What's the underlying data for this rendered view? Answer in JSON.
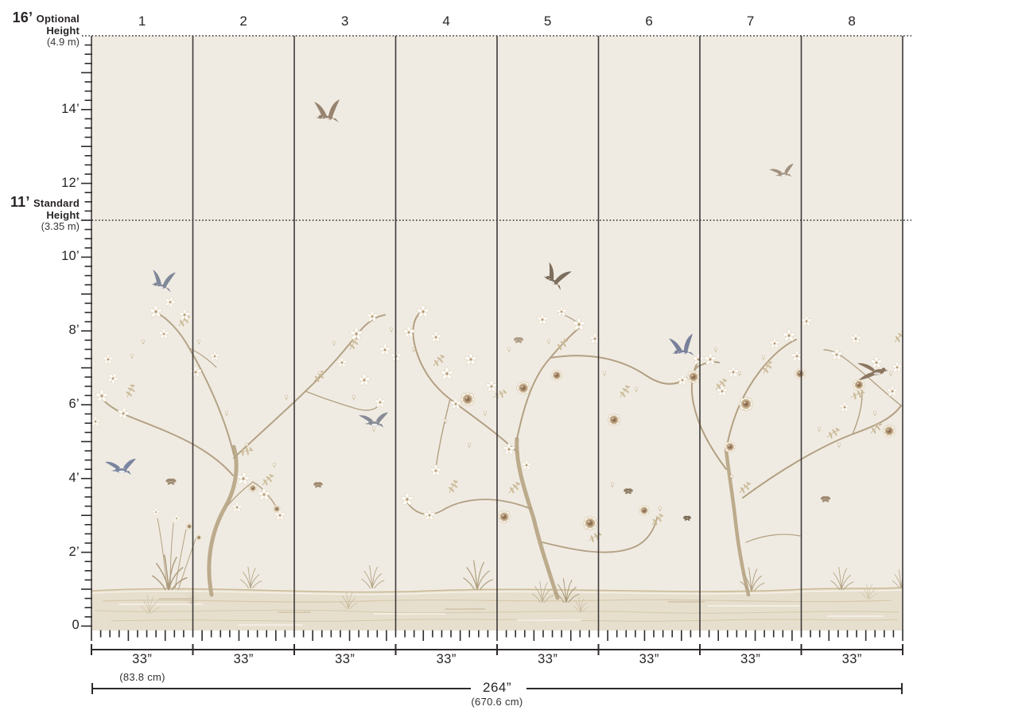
{
  "top_axis": {
    "panel_numbers": [
      "1",
      "2",
      "3",
      "4",
      "5",
      "6",
      "7",
      "8"
    ]
  },
  "left_axis": {
    "optional_height": {
      "value": "16’",
      "label_word1": "Optional",
      "label_word2": "Height",
      "metric": "(4.9 m)"
    },
    "standard_height": {
      "value": "11’",
      "label_word1": "Standard",
      "label_word2": "Height",
      "metric": "(3.35 m)"
    },
    "tick_labels": [
      "14’",
      "12’",
      "10’",
      "8’",
      "6’",
      "4’",
      "2’",
      "0"
    ]
  },
  "bottom_axis": {
    "panel_width_labels": [
      "33”",
      "33”",
      "33”",
      "33”",
      "33”",
      "33”",
      "33”",
      "33”"
    ],
    "first_panel_metric": "(83.8 cm)",
    "total_width": "264”",
    "total_width_metric": "(670.6 cm)"
  },
  "colors": {
    "page_background": "#ffffff",
    "mural_background": "#f0ebe2",
    "ground": "#e7dfce",
    "branch": "#b3a285",
    "rule_lines": "#3d393a",
    "text": "#282425",
    "bird_slate": "#7f8799",
    "bird_taupe": "#97836f"
  }
}
